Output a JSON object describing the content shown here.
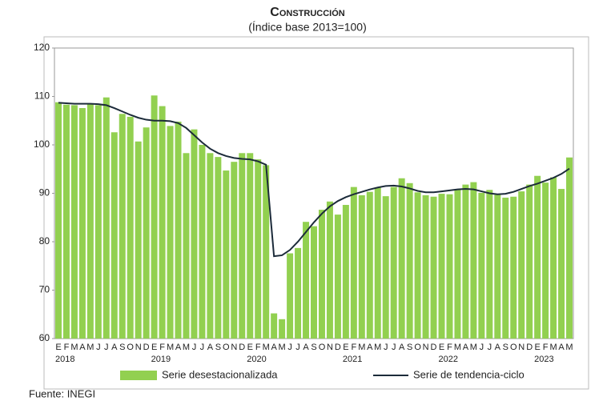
{
  "chart_data": {
    "type": "bar_line",
    "title": "Construcción",
    "subtitle": "(Índice base 2013=100)",
    "source": "Fuente: INEGI",
    "categories": [
      "E",
      "F",
      "M",
      "A",
      "M",
      "J",
      "J",
      "A",
      "S",
      "O",
      "N",
      "D",
      "E",
      "F",
      "M",
      "A",
      "M",
      "J",
      "J",
      "A",
      "S",
      "O",
      "N",
      "D",
      "E",
      "F",
      "M",
      "A",
      "M",
      "J",
      "J",
      "A",
      "S",
      "O",
      "N",
      "D",
      "E",
      "F",
      "M",
      "A",
      "M",
      "J",
      "J",
      "A",
      "S",
      "O",
      "N",
      "D",
      "E",
      "F",
      "M",
      "A",
      "M",
      "J",
      "J",
      "A",
      "S",
      "O",
      "N",
      "D",
      "E",
      "F",
      "M",
      "A",
      "M"
    ],
    "year_categories": [
      "2018",
      null,
      null,
      null,
      null,
      null,
      null,
      null,
      null,
      null,
      null,
      null,
      "2019",
      null,
      null,
      null,
      null,
      null,
      null,
      null,
      null,
      null,
      null,
      null,
      "2020",
      null,
      null,
      null,
      null,
      null,
      null,
      null,
      null,
      null,
      null,
      null,
      "2021",
      null,
      null,
      null,
      null,
      null,
      null,
      null,
      null,
      null,
      null,
      null,
      "2022",
      null,
      null,
      null,
      null,
      null,
      null,
      null,
      null,
      null,
      null,
      null,
      "2023",
      null,
      null,
      null,
      null
    ],
    "series": [
      {
        "name": "Serie desestacionalizada",
        "type": "bar",
        "color": "#92d050",
        "values": [
          108.8,
          108.3,
          108.2,
          107.6,
          108.6,
          108.2,
          109.8,
          102.6,
          106.4,
          105.8,
          100.7,
          103.6,
          110.2,
          108.0,
          103.9,
          104.8,
          98.3,
          103.2,
          100.0,
          98.3,
          97.5,
          94.7,
          96.5,
          98.3,
          98.3,
          97.0,
          95.8,
          65.2,
          64.0,
          77.6,
          78.7,
          84.1,
          83.2,
          86.6,
          88.3,
          85.6,
          87.6,
          91.3,
          89.6,
          90.3,
          91.2,
          89.4,
          91.3,
          93.1,
          92.1,
          90.2,
          89.6,
          89.3,
          89.9,
          89.8,
          90.8,
          91.8,
          92.3,
          90.1,
          90.7,
          89.7,
          89.1,
          89.3,
          90.4,
          91.8,
          93.6,
          92.2,
          93.3,
          90.9,
          97.4
        ]
      },
      {
        "name": "Serie de tendencia-ciclo",
        "type": "line",
        "color": "#1c2b3a",
        "values": [
          108.7,
          108.6,
          108.5,
          108.5,
          108.5,
          108.4,
          108.2,
          107.6,
          106.9,
          106.2,
          105.6,
          105.2,
          105.0,
          105.0,
          104.9,
          104.5,
          103.5,
          102.0,
          100.5,
          99.2,
          98.3,
          97.7,
          97.3,
          97.1,
          97.0,
          96.6,
          95.9,
          77.0,
          77.2,
          78.3,
          80.0,
          82.0,
          84.0,
          85.8,
          87.3,
          88.4,
          89.2,
          89.8,
          90.3,
          90.8,
          91.2,
          91.5,
          91.6,
          91.4,
          91.0,
          90.5,
          90.2,
          90.2,
          90.4,
          90.6,
          90.8,
          90.9,
          90.8,
          90.4,
          90.0,
          89.8,
          89.9,
          90.3,
          90.9,
          91.5,
          92.0,
          92.6,
          93.2,
          94.0,
          95.1
        ]
      }
    ],
    "ylim": [
      60,
      120
    ],
    "yticks": [
      60,
      70,
      80,
      90,
      100,
      110,
      120
    ],
    "grid": false,
    "legend": "bottom"
  }
}
